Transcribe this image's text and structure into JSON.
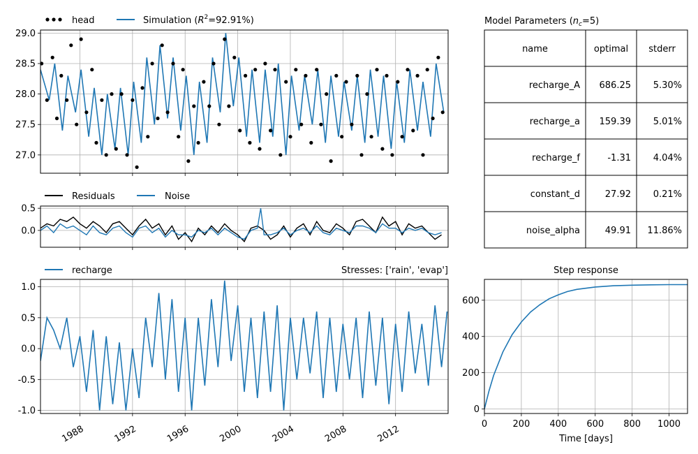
{
  "chart_data": [
    {
      "type": "line",
      "panel": "head",
      "legend": [
        {
          "name": "head",
          "marker": "dots",
          "color": "#000000"
        },
        {
          "name": "Simulation",
          "r2_label": "=92.91%)",
          "color": "#1f77b4"
        }
      ],
      "xlim": [
        "1985-01-01",
        "2015-12-31"
      ],
      "ylim": [
        26.7,
        29.05
      ],
      "yticks": [
        "27.0",
        "27.5",
        "28.0",
        "28.5",
        "29.0"
      ],
      "grid": true,
      "series": [
        {
          "name": "Simulation",
          "x": [
            "1985-01",
            "1985-09",
            "1986-02",
            "1986-09",
            "1987-02",
            "1987-09",
            "1988-02",
            "1988-09",
            "1989-02",
            "1989-09",
            "1990-02",
            "1990-09",
            "1991-02",
            "1991-09",
            "1992-02",
            "1992-09",
            "1993-02",
            "1993-09",
            "1994-02",
            "1994-09",
            "1995-02",
            "1995-09",
            "1996-02",
            "1996-09",
            "1997-02",
            "1997-09",
            "1998-02",
            "1998-09",
            "1999-02",
            "1999-09",
            "2000-02",
            "2000-09",
            "2001-02",
            "2001-09",
            "2002-02",
            "2002-09",
            "2003-02",
            "2003-09",
            "2004-02",
            "2004-09",
            "2005-02",
            "2005-09",
            "2006-02",
            "2006-09",
            "2007-02",
            "2007-09",
            "2008-02",
            "2008-09",
            "2009-02",
            "2009-09",
            "2010-02",
            "2010-09",
            "2011-02",
            "2011-09",
            "2012-02",
            "2012-09",
            "2013-02",
            "2013-09",
            "2014-02",
            "2014-09",
            "2015-02",
            "2015-09"
          ],
          "y": [
            28.4,
            27.9,
            28.5,
            27.4,
            28.3,
            27.7,
            28.4,
            27.3,
            28.1,
            27.0,
            28.0,
            27.1,
            28.1,
            27.0,
            28.2,
            27.2,
            28.6,
            27.5,
            28.8,
            27.6,
            28.6,
            27.4,
            28.3,
            27.0,
            28.2,
            27.2,
            28.6,
            27.7,
            29.0,
            27.8,
            28.6,
            27.3,
            28.4,
            27.2,
            28.4,
            27.3,
            28.5,
            27.0,
            28.3,
            27.4,
            28.3,
            27.5,
            28.4,
            27.2,
            28.3,
            27.3,
            28.2,
            27.4,
            28.3,
            27.2,
            28.4,
            27.3,
            28.3,
            27.1,
            28.2,
            27.2,
            28.4,
            27.4,
            28.2,
            27.3,
            28.5,
            27.7
          ]
        },
        {
          "name": "head",
          "x": [
            "1985-02",
            "1985-07",
            "1985-12",
            "1986-04",
            "1986-08",
            "1987-01",
            "1987-05",
            "1987-10",
            "1988-02",
            "1988-07",
            "1988-12",
            "1989-04",
            "1989-09",
            "1990-01",
            "1990-06",
            "1990-10",
            "1991-03",
            "1991-08",
            "1992-01",
            "1992-05",
            "1992-10",
            "1993-03",
            "1993-07",
            "1993-12",
            "1994-04",
            "1994-09",
            "1995-02",
            "1995-07",
            "1995-11",
            "1996-04",
            "1996-09",
            "1997-01",
            "1997-06",
            "1997-11",
            "1998-03",
            "1998-08",
            "1999-01",
            "1999-05",
            "1999-10",
            "2000-03",
            "2000-08",
            "2000-12",
            "2001-05",
            "2001-09",
            "2002-02",
            "2002-07",
            "2002-11",
            "2003-04",
            "2003-09",
            "2004-01",
            "2004-06",
            "2004-11",
            "2005-03",
            "2005-08",
            "2006-01",
            "2006-05",
            "2006-10",
            "2007-02",
            "2007-07",
            "2007-12",
            "2008-04",
            "2008-09",
            "2009-02",
            "2009-06",
            "2009-11",
            "2010-03",
            "2010-08",
            "2011-01",
            "2011-05",
            "2011-10",
            "2012-03",
            "2012-07",
            "2012-12",
            "2013-05",
            "2013-09",
            "2014-02",
            "2014-06",
            "2014-11",
            "2015-04",
            "2015-08"
          ],
          "y": [
            28.5,
            27.9,
            28.6,
            27.6,
            28.3,
            27.9,
            28.8,
            27.5,
            28.9,
            27.7,
            28.4,
            27.2,
            27.9,
            27.0,
            28.0,
            27.1,
            28.0,
            27.0,
            27.9,
            26.8,
            28.1,
            27.3,
            28.5,
            27.6,
            28.8,
            27.7,
            28.5,
            27.3,
            28.4,
            26.9,
            27.8,
            27.2,
            28.2,
            27.8,
            28.5,
            27.5,
            28.9,
            27.8,
            28.6,
            27.4,
            28.3,
            27.2,
            28.4,
            27.1,
            28.5,
            27.4,
            28.4,
            27.0,
            28.2,
            27.3,
            28.4,
            27.5,
            28.3,
            27.2,
            28.4,
            27.5,
            28.0,
            26.9,
            28.3,
            27.3,
            28.2,
            27.5,
            28.3,
            27.0,
            28.0,
            27.3,
            28.4,
            27.1,
            28.3,
            27.0,
            28.2,
            27.3,
            28.4,
            27.4,
            28.3,
            27.0,
            28.4,
            27.6,
            28.6,
            27.7
          ]
        }
      ]
    },
    {
      "type": "line",
      "panel": "residuals",
      "legend": [
        {
          "name": "Residuals",
          "color": "#000000"
        },
        {
          "name": "Noise",
          "color": "#1f77b4"
        }
      ],
      "xlim": [
        "1985-01-01",
        "2015-12-31"
      ],
      "ylim": [
        -0.38,
        0.55
      ],
      "yticks": [
        "0.5",
        "0.0"
      ],
      "grid": true,
      "series": [
        {
          "name": "Residuals",
          "x": [
            "1985-01",
            "1985-07",
            "1986-01",
            "1986-07",
            "1987-01",
            "1987-07",
            "1988-01",
            "1988-07",
            "1989-01",
            "1989-07",
            "1990-01",
            "1990-07",
            "1991-01",
            "1991-07",
            "1992-01",
            "1992-07",
            "1993-01",
            "1993-07",
            "1994-01",
            "1994-07",
            "1995-01",
            "1995-07",
            "1996-01",
            "1996-07",
            "1997-01",
            "1997-07",
            "1998-01",
            "1998-07",
            "1999-01",
            "1999-07",
            "2000-01",
            "2000-07",
            "2001-01",
            "2001-07",
            "2002-01",
            "2002-07",
            "2003-01",
            "2003-07",
            "2004-01",
            "2004-07",
            "2005-01",
            "2005-07",
            "2006-01",
            "2006-07",
            "2007-01",
            "2007-07",
            "2008-01",
            "2008-07",
            "2009-01",
            "2009-07",
            "2010-01",
            "2010-07",
            "2011-01",
            "2011-07",
            "2012-01",
            "2012-07",
            "2013-01",
            "2013-07",
            "2014-01",
            "2014-07",
            "2015-01",
            "2015-07"
          ],
          "y": [
            0.05,
            0.15,
            0.1,
            0.25,
            0.2,
            0.3,
            0.15,
            0.05,
            0.2,
            0.1,
            -0.05,
            0.15,
            0.2,
            0.05,
            -0.1,
            0.1,
            0.25,
            0.05,
            0.15,
            -0.1,
            0.1,
            -0.2,
            -0.05,
            -0.25,
            0.05,
            -0.1,
            0.1,
            -0.05,
            0.15,
            0.0,
            -0.1,
            -0.25,
            0.05,
            0.1,
            0.0,
            -0.2,
            -0.1,
            0.1,
            -0.15,
            0.05,
            0.15,
            -0.1,
            0.2,
            0.0,
            -0.05,
            0.15,
            0.05,
            -0.1,
            0.2,
            0.25,
            0.1,
            -0.05,
            0.3,
            0.1,
            0.2,
            -0.1,
            0.15,
            0.05,
            0.1,
            -0.05,
            -0.2,
            -0.1
          ]
        },
        {
          "name": "Noise",
          "x": [
            "1985-01",
            "1985-07",
            "1986-01",
            "1986-07",
            "1987-01",
            "1987-07",
            "1988-01",
            "1988-07",
            "1989-01",
            "1989-07",
            "1990-01",
            "1990-07",
            "1991-01",
            "1991-07",
            "1992-01",
            "1992-07",
            "1993-01",
            "1993-07",
            "1994-01",
            "1994-07",
            "1995-01",
            "1995-07",
            "1996-01",
            "1996-07",
            "1997-01",
            "1997-07",
            "1998-01",
            "1998-07",
            "1999-01",
            "1999-07",
            "2000-01",
            "2000-07",
            "2001-01",
            "2001-07",
            "2001-10",
            "2002-01",
            "2002-07",
            "2003-01",
            "2003-07",
            "2004-01",
            "2004-07",
            "2005-01",
            "2005-07",
            "2006-01",
            "2006-07",
            "2007-01",
            "2007-07",
            "2008-01",
            "2008-07",
            "2009-01",
            "2009-07",
            "2010-01",
            "2010-07",
            "2011-01",
            "2011-07",
            "2012-01",
            "2012-07",
            "2013-01",
            "2013-07",
            "2014-01",
            "2014-07",
            "2015-01",
            "2015-07"
          ],
          "y": [
            0.0,
            0.1,
            -0.05,
            0.15,
            0.05,
            0.1,
            0.0,
            -0.1,
            0.1,
            -0.05,
            -0.1,
            0.05,
            0.1,
            -0.05,
            -0.15,
            0.05,
            0.1,
            -0.05,
            0.05,
            -0.15,
            0.0,
            -0.1,
            -0.1,
            -0.15,
            0.0,
            -0.05,
            0.05,
            -0.1,
            0.05,
            -0.05,
            -0.15,
            -0.2,
            0.0,
            0.05,
            0.5,
            -0.1,
            -0.1,
            -0.05,
            0.05,
            -0.1,
            0.0,
            0.05,
            -0.05,
            0.1,
            -0.05,
            -0.1,
            0.05,
            0.0,
            -0.05,
            0.1,
            0.1,
            0.05,
            -0.05,
            0.15,
            0.05,
            0.05,
            -0.05,
            0.05,
            0.0,
            0.05,
            -0.05,
            -0.1,
            -0.05
          ]
        }
      ]
    },
    {
      "type": "line",
      "panel": "recharge",
      "legend": [
        {
          "name": "recharge",
          "color": "#1f77b4"
        }
      ],
      "title_right": "Stresses: ['rain', 'evap']",
      "xlim": [
        "1985-01-01",
        "2015-12-31"
      ],
      "ylim": [
        -1.05,
        1.12
      ],
      "yticks": [
        "1.0",
        "0.5",
        "0.0",
        "-0.5",
        "-1.0"
      ],
      "xticks": [
        "1988",
        "1992",
        "1996",
        "2000",
        "2004",
        "2008",
        "2012"
      ],
      "grid": true,
      "series": [
        {
          "name": "recharge",
          "x": [
            "1985-01",
            "1985-07",
            "1986-01",
            "1986-07",
            "1987-01",
            "1987-07",
            "1988-01",
            "1988-07",
            "1989-01",
            "1989-07",
            "1990-01",
            "1990-07",
            "1991-01",
            "1991-07",
            "1992-01",
            "1992-07",
            "1993-01",
            "1993-07",
            "1994-01",
            "1994-07",
            "1995-01",
            "1995-07",
            "1996-01",
            "1996-07",
            "1997-01",
            "1997-07",
            "1998-01",
            "1998-07",
            "1999-01",
            "1999-07",
            "2000-01",
            "2000-07",
            "2001-01",
            "2001-07",
            "2002-01",
            "2002-07",
            "2003-01",
            "2003-07",
            "2004-01",
            "2004-07",
            "2005-01",
            "2005-07",
            "2006-01",
            "2006-07",
            "2007-01",
            "2007-07",
            "2008-01",
            "2008-07",
            "2009-01",
            "2009-07",
            "2010-01",
            "2010-07",
            "2011-01",
            "2011-07",
            "2012-01",
            "2012-07",
            "2013-01",
            "2013-07",
            "2014-01",
            "2014-07",
            "2015-01",
            "2015-07",
            "2015-12"
          ],
          "y": [
            -0.2,
            0.5,
            0.3,
            0.0,
            0.5,
            -0.3,
            0.2,
            -0.7,
            0.3,
            -1.0,
            0.2,
            -0.9,
            0.1,
            -1.0,
            0.0,
            -0.8,
            0.5,
            -0.3,
            0.9,
            -0.5,
            0.8,
            -0.7,
            0.5,
            -1.0,
            0.5,
            -0.6,
            0.8,
            -0.3,
            1.1,
            -0.2,
            0.7,
            -0.7,
            0.5,
            -0.8,
            0.6,
            -0.7,
            0.7,
            -1.0,
            0.5,
            -0.5,
            0.5,
            -0.4,
            0.6,
            -0.8,
            0.5,
            -0.7,
            0.4,
            -0.5,
            0.5,
            -0.8,
            0.6,
            -0.6,
            0.5,
            -0.9,
            0.4,
            -0.7,
            0.6,
            -0.4,
            0.4,
            -0.6,
            0.7,
            -0.3,
            0.6
          ]
        }
      ]
    },
    {
      "type": "line",
      "panel": "step",
      "title": "Step response",
      "xlabel": "Time [days]",
      "xlim": [
        0,
        1100
      ],
      "ylim": [
        -25,
        715
      ],
      "xticks": [
        "0",
        "200",
        "400",
        "600",
        "800",
        "1000"
      ],
      "yticks": [
        "0",
        "200",
        "400",
        "600"
      ],
      "grid": true,
      "series": [
        {
          "name": "step",
          "x": [
            0,
            25,
            50,
            100,
            150,
            200,
            250,
            300,
            350,
            400,
            450,
            500,
            600,
            700,
            800,
            900,
            1000,
            1100
          ],
          "y": [
            0,
            100,
            185,
            315,
            410,
            480,
            535,
            575,
            608,
            630,
            648,
            660,
            673,
            680,
            683,
            685,
            686,
            686
          ]
        }
      ]
    },
    {
      "type": "table",
      "panel": "params",
      "title_prefix": "Model Parameters (",
      "title_suffix": "=5)",
      "columns": [
        "name",
        "optimal",
        "stderr"
      ],
      "rows": [
        [
          "recharge_A",
          "686.25",
          "5.30%"
        ],
        [
          "recharge_a",
          "159.39",
          "5.01%"
        ],
        [
          "recharge_f",
          "-1.31",
          "4.04%"
        ],
        [
          "constant_d",
          "27.92",
          "0.21%"
        ],
        [
          "noise_alpha",
          "49.91",
          "11.86%"
        ]
      ]
    }
  ],
  "colors": {
    "sim": "#1f77b4",
    "obs": "#000000",
    "grid": "#b0b0b0"
  }
}
